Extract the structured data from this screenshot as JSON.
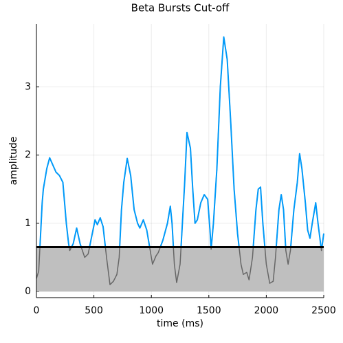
{
  "chart_data": {
    "type": "line",
    "title": "Beta Bursts Cut-off",
    "xlabel": "time (ms)",
    "ylabel": "amplitude",
    "x": [
      0,
      20,
      50,
      60,
      90,
      115,
      170,
      200,
      230,
      260,
      280,
      290,
      320,
      350,
      380,
      420,
      450,
      480,
      510,
      530,
      555,
      580,
      610,
      640,
      670,
      700,
      720,
      740,
      760,
      790,
      820,
      850,
      880,
      900,
      930,
      960,
      990,
      1010,
      1040,
      1060,
      1100,
      1140,
      1165,
      1180,
      1200,
      1220,
      1250,
      1270,
      1290,
      1310,
      1340,
      1360,
      1380,
      1400,
      1430,
      1460,
      1490,
      1510,
      1520,
      1540,
      1570,
      1600,
      1630,
      1660,
      1690,
      1720,
      1750,
      1780,
      1800,
      1830,
      1850,
      1880,
      1910,
      1930,
      1950,
      1970,
      2000,
      2030,
      2060,
      2080,
      2110,
      2130,
      2150,
      2170,
      2190,
      2210,
      2240,
      2270,
      2290,
      2310,
      2340,
      2360,
      2380,
      2400,
      2430,
      2450,
      2480,
      2500
    ],
    "values": [
      0.19,
      0.3,
      1.3,
      1.5,
      1.8,
      1.96,
      1.75,
      1.7,
      1.6,
      1.0,
      0.7,
      0.6,
      0.7,
      0.93,
      0.7,
      0.5,
      0.55,
      0.8,
      1.05,
      0.98,
      1.08,
      0.95,
      0.5,
      0.1,
      0.15,
      0.25,
      0.5,
      1.2,
      1.6,
      1.95,
      1.7,
      1.2,
      1.0,
      0.93,
      1.05,
      0.9,
      0.6,
      0.4,
      0.52,
      0.57,
      0.75,
      1.0,
      1.25,
      1.0,
      0.4,
      0.13,
      0.4,
      1.0,
      1.6,
      2.33,
      2.1,
      1.5,
      1.0,
      1.05,
      1.3,
      1.42,
      1.35,
      0.9,
      0.62,
      1.0,
      1.8,
      3.0,
      3.73,
      3.4,
      2.5,
      1.5,
      0.85,
      0.4,
      0.25,
      0.28,
      0.17,
      0.5,
      1.2,
      1.5,
      1.53,
      1.0,
      0.4,
      0.12,
      0.15,
      0.5,
      1.2,
      1.42,
      1.2,
      0.6,
      0.4,
      0.6,
      1.2,
      1.6,
      2.02,
      1.8,
      1.3,
      0.9,
      0.78,
      1.0,
      1.3,
      1.0,
      0.6,
      0.85
    ],
    "color": "#009af9",
    "below_color": "#666666",
    "threshold": 0.65,
    "threshold_color": "#000000",
    "fill_color": "#bfbfbf",
    "xlim": [
      0,
      2500
    ],
    "xticks": [
      0,
      500,
      1000,
      1500,
      2000,
      2500
    ],
    "ylim": [
      -0.09,
      3.92
    ],
    "yticks": [
      0,
      1,
      2,
      3
    ],
    "grid": true
  }
}
